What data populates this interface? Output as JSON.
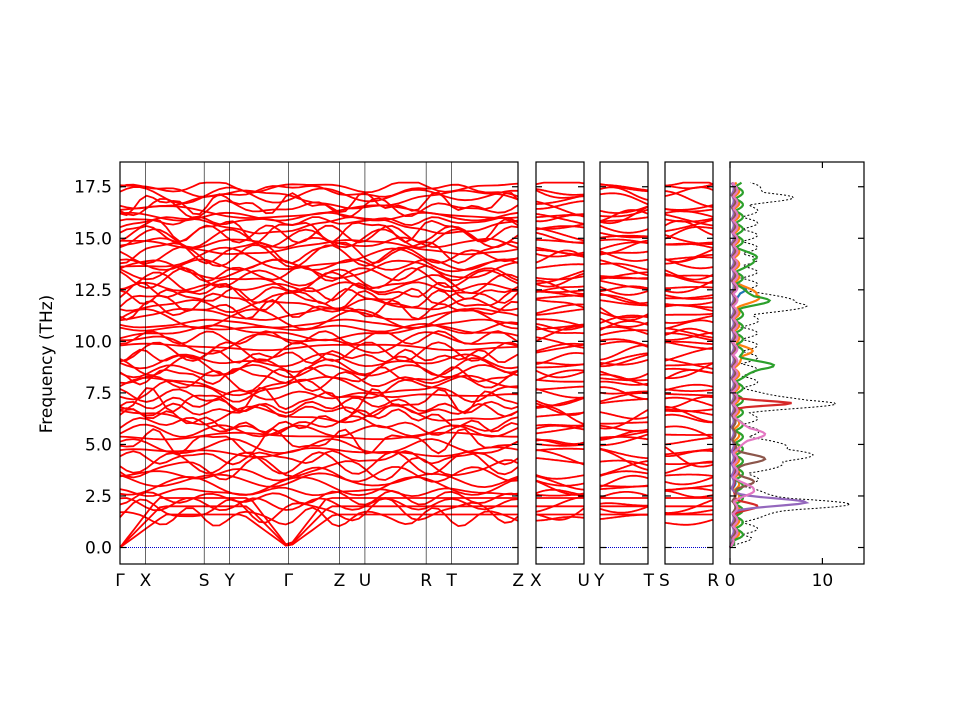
{
  "chart_data": {
    "type": "line",
    "title": "",
    "ylabel": "Frequency (THz)",
    "ylim": [
      -0.8,
      18.7
    ],
    "yticks": [
      "0.0",
      "2.5",
      "5.0",
      "7.5",
      "10.0",
      "12.5",
      "15.0",
      "17.5"
    ],
    "band_color": "#ff0000",
    "zero_line_color": "#0000cc",
    "panels": [
      {
        "id": "main",
        "labels": [
          "Γ",
          "X",
          "S",
          "Y",
          "Γ",
          "Z",
          "U",
          "R",
          "T",
          "Z"
        ],
        "positions": [
          0,
          1,
          3.3,
          4.3,
          6.6,
          8.6,
          9.6,
          12,
          13,
          15.6
        ]
      },
      {
        "id": "xu",
        "labels": [
          "X",
          "U"
        ],
        "positions": [
          0,
          1
        ]
      },
      {
        "id": "yt",
        "labels": [
          "Y",
          "T"
        ],
        "positions": [
          0,
          1
        ]
      },
      {
        "id": "sr",
        "labels": [
          "S",
          "R"
        ],
        "positions": [
          0,
          1
        ]
      }
    ],
    "dos": {
      "xlim": [
        0,
        14.5
      ],
      "xticks": [
        "0",
        "10"
      ],
      "total_color": "#000000",
      "projection_colors": [
        "#1f77b4",
        "#ff7f0e",
        "#2ca02c",
        "#d62728",
        "#9467bd",
        "#8c564b",
        "#e377c2"
      ]
    }
  }
}
